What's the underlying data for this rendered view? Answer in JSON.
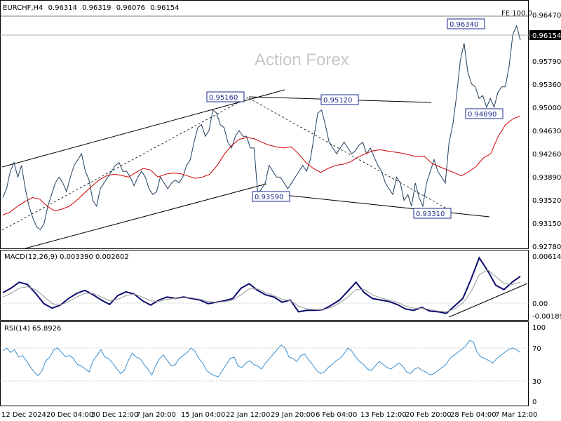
{
  "chart_data": [
    {
      "type": "line",
      "panel": "price",
      "title": "EURCHF,H4",
      "ohlc": {
        "open": "0.96314",
        "high": "0.96319",
        "low": "0.96076",
        "close": "0.96154"
      },
      "watermark": "Action Forex",
      "current_price": "0.96154",
      "fe_label": "FE 100.0",
      "ylim": [
        0.927,
        0.967
      ],
      "y_ticks": [
        "0.96470",
        "0.95790",
        "0.95360",
        "0.95000",
        "0.94630",
        "0.94260",
        "0.93890",
        "0.93520",
        "0.93150",
        "0.92780"
      ],
      "x_labels": [
        "12 Dec 2024",
        "20 Dec 04:00",
        "30 Dec 12:00",
        "7 Jan 20:00",
        "15 Jan 04:00",
        "22 Jan 12:00",
        "29 Jan 20:00",
        "6 Feb 04:00",
        "13 Feb 12:00",
        "20 Feb 20:00",
        "28 Feb 04:00",
        "7 Mar 12:00"
      ],
      "annotations": [
        {
          "label": "0.95160",
          "value": 0.9516
        },
        {
          "label": "0.95120",
          "value": 0.9512
        },
        {
          "label": "0.93590",
          "value": 0.9359
        },
        {
          "label": "0.93310",
          "value": 0.9331
        },
        {
          "label": "0.94890",
          "value": 0.9489
        },
        {
          "label": "0.96340",
          "value": 0.9634
        }
      ],
      "series": [
        {
          "color": "#1f3f5f",
          "values": [
            0.9355,
            0.937,
            0.94,
            0.9415,
            0.939,
            0.941,
            0.937,
            0.934,
            0.932,
            0.9305,
            0.93,
            0.931,
            0.934,
            0.936,
            0.938,
            0.939,
            0.938,
            0.9365,
            0.939,
            0.941,
            0.942,
            0.943,
            0.94,
            0.9385,
            0.935,
            0.934,
            0.937,
            0.938,
            0.939,
            0.94,
            0.941,
            0.9415,
            0.94,
            0.94,
            0.939,
            0.9375,
            0.939,
            0.94,
            0.939,
            0.937,
            0.936,
            0.9365,
            0.939,
            0.938,
            0.937,
            0.938,
            0.9385,
            0.938,
            0.939,
            0.941,
            0.942,
            0.945,
            0.9475,
            0.948,
            0.946,
            0.947,
            0.9505,
            0.95,
            0.948,
            0.9475,
            0.945,
            0.944,
            0.946,
            0.947,
            0.946,
            0.946,
            0.944,
            0.944,
            0.936,
            0.937,
            0.938,
            0.941,
            0.94,
            0.939,
            0.939,
            0.938,
            0.937,
            0.938,
            0.939,
            0.94,
            0.941,
            0.94,
            0.942,
            0.946,
            0.95,
            0.9505,
            0.948,
            0.945,
            0.944,
            0.943,
            0.944,
            0.945,
            0.944,
            0.943,
            0.9435,
            0.9445,
            0.945,
            0.943,
            0.944,
            0.9425,
            0.941,
            0.94,
            0.938,
            0.937,
            0.936,
            0.939,
            0.938,
            0.935,
            0.936,
            0.934,
            0.938,
            0.9355,
            0.934,
            0.938,
            0.94,
            0.942,
            0.94,
            0.939,
            0.938,
            0.945,
            0.948,
            0.953,
            0.959,
            0.962,
            0.957,
            0.955,
            0.9545,
            0.9525,
            0.953,
            0.951,
            0.9525,
            0.951,
            0.9535,
            0.9545,
            0.9545,
            0.958,
            0.9635,
            0.965,
            0.9625
          ]
        },
        {
          "color": "#cc0000",
          "values": [
            0.9325,
            0.933,
            0.934,
            0.9348,
            0.9355,
            0.9352,
            0.934,
            0.9332,
            0.9335,
            0.934,
            0.935,
            0.9362,
            0.9374,
            0.9385,
            0.9392,
            0.9395,
            0.9393,
            0.939,
            0.9398,
            0.9405,
            0.9402,
            0.939,
            0.9395,
            0.9397,
            0.9396,
            0.9392,
            0.9388,
            0.939,
            0.9395,
            0.941,
            0.943,
            0.9445,
            0.9455,
            0.9458,
            0.9456,
            0.945,
            0.9445,
            0.9442,
            0.944,
            0.9442,
            0.943,
            0.9415,
            0.9405,
            0.9398,
            0.9405,
            0.941,
            0.9412,
            0.9416,
            0.9424,
            0.943,
            0.9435,
            0.9437,
            0.9435,
            0.9433,
            0.9431,
            0.9428,
            0.9425,
            0.9426,
            0.9414,
            0.9408,
            0.9403,
            0.9398,
            0.9392,
            0.9399,
            0.9408,
            0.9423,
            0.943,
            0.946,
            0.948,
            0.949,
            0.9495
          ]
        }
      ]
    },
    {
      "type": "line",
      "panel": "macd",
      "title": "MACD(12,26,9) 0.003390 0.002602",
      "ylim": [
        -0.0024,
        0.0066
      ],
      "y_ticks": [
        "0.006143",
        "0.00",
        "-0.001896"
      ],
      "series": [
        {
          "color": "#0a0a6e",
          "values": [
            0.0012,
            0.0018,
            0.0026,
            0.0023,
            0.0011,
            -0.0003,
            -0.0009,
            -0.0005,
            0.0004,
            0.0011,
            0.0015,
            0.0009,
            0.0002,
            -0.0004,
            0.0008,
            0.0013,
            0.001,
            0.0001,
            -0.0005,
            0.0002,
            0.0006,
            0.0004,
            0.0006,
            0.0004,
            0.0002,
            -0.0003,
            -0.0001,
            0.0001,
            0.0004,
            0.0018,
            0.0024,
            0.0015,
            0.0009,
            0.0006,
            -0.0001,
            0.0002,
            -0.0014,
            -0.0012,
            -0.0012,
            -0.0011,
            -0.0005,
            0.0002,
            0.0014,
            0.0026,
            0.0012,
            0.0004,
            0.0002,
            0.0,
            -0.0004,
            -0.001,
            -0.0012,
            -0.0008,
            -0.0013,
            -0.0014,
            -0.0016,
            -0.0006,
            0.0004,
            0.003,
            0.0059,
            0.0042,
            0.0022,
            0.0016,
            0.0026,
            0.0034
          ]
        },
        {
          "color": "#9a9a9a",
          "values": [
            0.0006,
            0.0011,
            0.0018,
            0.002,
            0.0016,
            0.0007,
            -0.0003,
            -0.0005,
            0.0,
            0.0006,
            0.0011,
            0.0011,
            0.0006,
            0.0001,
            0.0003,
            0.0008,
            0.001,
            0.0006,
            0.0001,
            0.0,
            0.0003,
            0.0004,
            0.0005,
            0.0005,
            0.0003,
            0.0,
            -0.0001,
            0.0,
            0.0002,
            0.0009,
            0.0017,
            0.0017,
            0.0012,
            0.0008,
            0.0003,
            0.0001,
            -0.0006,
            -0.001,
            -0.0011,
            -0.0011,
            -0.0008,
            -0.0002,
            0.0006,
            0.0016,
            0.0016,
            0.0009,
            0.0005,
            0.0002,
            -0.0001,
            -0.0006,
            -0.0009,
            -0.0009,
            -0.0011,
            -0.0013,
            -0.0014,
            -0.001,
            -0.0002,
            0.0013,
            0.0036,
            0.0043,
            0.0034,
            0.0024,
            0.0023,
            0.0026
          ]
        }
      ]
    },
    {
      "type": "line",
      "panel": "rsi",
      "title": "RSI(14) 65.8926",
      "ylim": [
        0,
        100
      ],
      "y_ticks": [
        "100",
        "70",
        "30",
        "0"
      ],
      "series": [
        {
          "color": "#3a8fd0",
          "values": [
            68,
            72,
            66,
            70,
            60,
            62,
            55,
            47,
            40,
            35,
            42,
            55,
            60,
            70,
            72,
            66,
            60,
            62,
            58,
            50,
            48,
            44,
            40,
            55,
            62,
            70,
            60,
            58,
            52,
            45,
            38,
            42,
            55,
            65,
            60,
            58,
            50,
            44,
            36,
            48,
            58,
            63,
            55,
            48,
            50,
            58,
            62,
            66,
            72,
            68,
            58,
            52,
            42,
            38,
            35,
            34,
            42,
            50,
            58,
            60,
            48,
            46,
            52,
            55,
            50,
            48,
            44,
            52,
            58,
            64,
            70,
            76,
            72,
            60,
            58,
            54,
            62,
            64,
            56,
            50,
            42,
            38,
            40,
            46,
            50,
            55,
            58,
            64,
            72,
            68,
            60,
            54,
            50,
            44,
            42,
            48,
            54,
            50,
            46,
            44,
            48,
            52,
            48,
            40,
            38,
            44,
            46,
            42,
            40,
            36,
            38,
            42,
            46,
            50,
            58,
            62,
            66,
            70,
            74,
            82,
            80,
            66,
            60,
            58,
            55,
            52,
            58,
            62,
            66,
            70,
            72,
            70,
            66
          ]
        }
      ]
    }
  ]
}
